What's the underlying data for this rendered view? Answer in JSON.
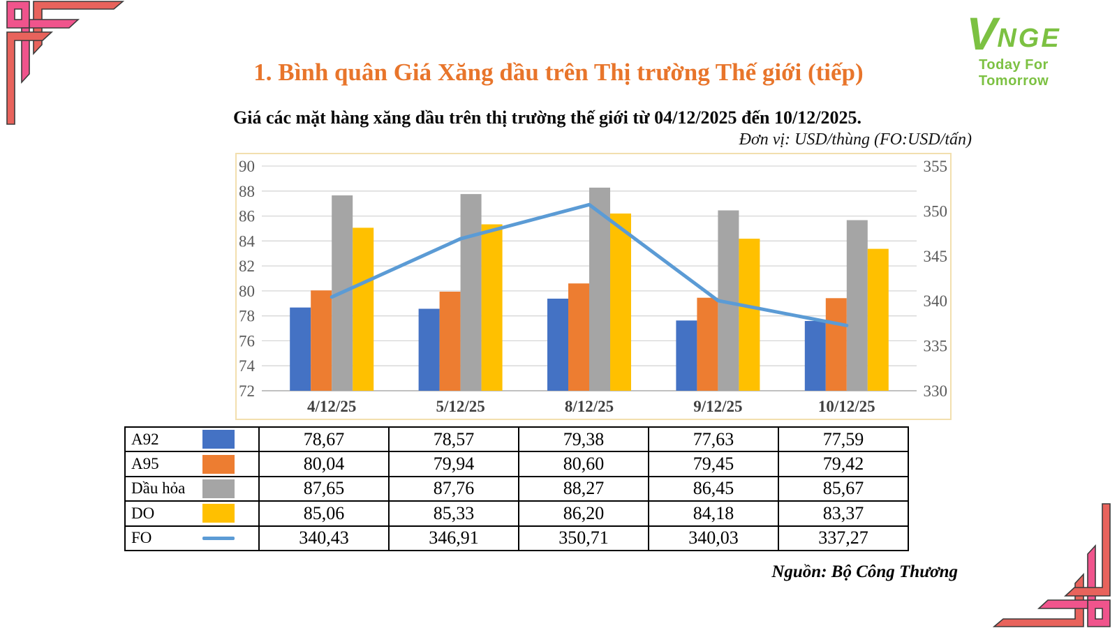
{
  "slide": {
    "title": "1. Bình quân Giá Xăng dầu trên Thị trường Thế giới (tiếp)",
    "title_color": "#E8752B",
    "subtitle": "Giá các mặt hàng xăng dầu trên thị trường thế giới từ 04/12/2025 đến 10/12/2025.",
    "unit_note": "Đơn vị: USD/thùng (FO:USD/tấn)",
    "source": "Nguồn: Bộ Công Thương"
  },
  "logo": {
    "mark": "V",
    "name_rest": "NGE",
    "tagline": "Today For Tomorrow",
    "color": "#7CC142"
  },
  "decoration": {
    "pink": "#F0548C",
    "coral": "#E8635C",
    "outline": "#3B3B3B"
  },
  "chart_data": {
    "type": "combo",
    "title": "",
    "categories": [
      "4/12/25",
      "5/12/25",
      "8/12/25",
      "9/12/25",
      "10/12/25"
    ],
    "series": [
      {
        "name": "A92",
        "type": "bar",
        "axis": "left",
        "color": "#4472C4",
        "values": [
          78.67,
          78.57,
          79.38,
          77.63,
          77.59
        ]
      },
      {
        "name": "A95",
        "type": "bar",
        "axis": "left",
        "color": "#ED7D31",
        "values": [
          80.04,
          79.94,
          80.6,
          79.45,
          79.42
        ]
      },
      {
        "name": "Dầu hỏa",
        "type": "bar",
        "axis": "left",
        "color": "#A5A5A5",
        "values": [
          87.65,
          87.76,
          88.27,
          86.45,
          85.67
        ]
      },
      {
        "name": "DO",
        "type": "bar",
        "axis": "left",
        "color": "#FFC000",
        "values": [
          85.06,
          85.33,
          86.2,
          84.18,
          83.37
        ]
      },
      {
        "name": "FO",
        "type": "line",
        "axis": "right",
        "color": "#5B9BD5",
        "values": [
          340.43,
          346.91,
          350.71,
          340.03,
          337.27
        ]
      }
    ],
    "left_axis": {
      "min": 72,
      "max": 90,
      "step": 2
    },
    "right_axis": {
      "min": 330,
      "max": 355,
      "step": 5
    },
    "grid": true,
    "gridline_color": "#D6D6D6",
    "baseline_color": "#B7B7B7",
    "frame_color": "#F2DFAE",
    "legend_position": "table-below"
  },
  "table": {
    "rows": [
      {
        "label": "A92",
        "swatch": "bar",
        "color": "#4472C4",
        "values": [
          "78,67",
          "78,57",
          "79,38",
          "77,63",
          "77,59"
        ]
      },
      {
        "label": "A95",
        "swatch": "bar",
        "color": "#ED7D31",
        "values": [
          "80,04",
          "79,94",
          "80,60",
          "79,45",
          "79,42"
        ]
      },
      {
        "label": "Dầu hỏa",
        "swatch": "bar",
        "color": "#A5A5A5",
        "values": [
          "87,65",
          "87,76",
          "88,27",
          "86,45",
          "85,67"
        ]
      },
      {
        "label": "DO",
        "swatch": "bar",
        "color": "#FFC000",
        "values": [
          "85,06",
          "85,33",
          "86,20",
          "84,18",
          "83,37"
        ]
      },
      {
        "label": "FO",
        "swatch": "line",
        "color": "#5B9BD5",
        "values": [
          "340,43",
          "346,91",
          "350,71",
          "340,03",
          "337,27"
        ]
      }
    ]
  }
}
